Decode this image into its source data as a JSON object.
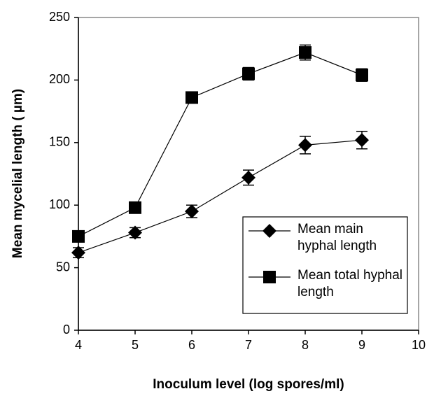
{
  "chart_data": {
    "type": "line",
    "x_label": "Inoculum level (log spores/ml)",
    "y_label": "Mean mycelial length ( µm)",
    "x": [
      4,
      5,
      6,
      7,
      8,
      9
    ],
    "series": [
      {
        "name": "Mean main hyphal length",
        "color": "#000000",
        "marker": "diamond",
        "values": [
          62,
          78,
          95,
          122,
          148,
          152
        ],
        "errors": [
          4,
          4,
          5,
          6,
          7,
          7
        ]
      },
      {
        "name": "Mean total hyphal length",
        "color": "#000000",
        "marker": "square",
        "values": [
          75,
          98,
          186,
          205,
          222,
          204
        ],
        "errors": [
          4,
          4,
          4,
          5,
          6,
          5
        ]
      }
    ],
    "xlim": [
      4,
      10
    ],
    "xticks": [
      4,
      5,
      6,
      7,
      8,
      9,
      10
    ],
    "ylim": [
      0,
      250
    ],
    "yticks": [
      0,
      50,
      100,
      150,
      200,
      250
    ],
    "legend": "lower right"
  }
}
